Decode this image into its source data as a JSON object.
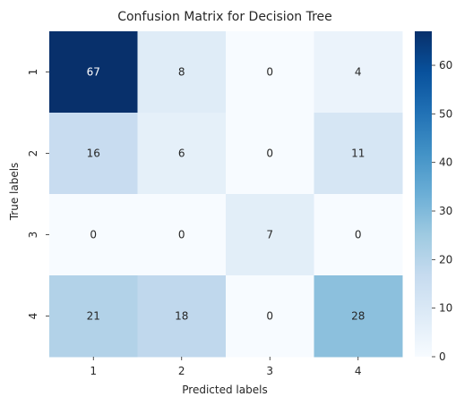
{
  "chart_data": {
    "type": "heatmap",
    "title": "Confusion Matrix for Decision Tree",
    "xlabel": "Predicted labels",
    "ylabel": "True labels",
    "x_categories": [
      "1",
      "2",
      "3",
      "4"
    ],
    "y_categories": [
      "1",
      "2",
      "3",
      "4"
    ],
    "values": [
      [
        67,
        8,
        0,
        4
      ],
      [
        16,
        6,
        0,
        11
      ],
      [
        0,
        0,
        7,
        0
      ],
      [
        21,
        18,
        0,
        28
      ]
    ],
    "colorbar": {
      "min": 0,
      "max": 67,
      "ticks": [
        0,
        10,
        20,
        30,
        40,
        50,
        60
      ],
      "colormap": "Blues",
      "low_color": "#f7fbff",
      "high_color": "#08306b"
    },
    "grid": false,
    "annotations": true
  }
}
